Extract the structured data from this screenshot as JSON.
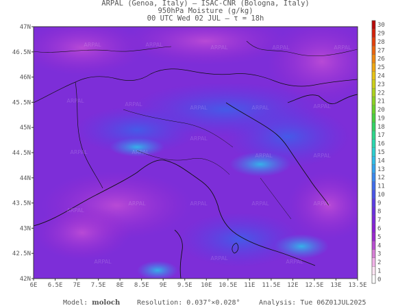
{
  "header": {
    "line1": "ARPAL (Genoa, Italy)  –  ISAC-CNR (Bologna, Italy)",
    "line2": "950hPa Moisture (g/kg)",
    "line3": "00 UTC Wed 02 JUL  –  τ = 18h"
  },
  "map": {
    "lat_labels": [
      "47N",
      "46.5N",
      "46N",
      "45.5N",
      "45N",
      "44.5N",
      "44N",
      "43.5N",
      "43N",
      "42.5N",
      "42N"
    ],
    "lon_labels": [
      "6E",
      "6.5E",
      "7E",
      "7.5E",
      "8E",
      "8.5E",
      "9E",
      "9.5E",
      "10E",
      "10.5E",
      "11E",
      "11.5E",
      "12E",
      "12.5E",
      "13E",
      "13.5E"
    ],
    "watermark": "ARPAL"
  },
  "colorbar": {
    "labels": [
      "0",
      "1",
      "2",
      "3",
      "4",
      "5",
      "6",
      "7",
      "8",
      "9",
      "10",
      "11",
      "12",
      "13",
      "14",
      "15",
      "16",
      "17",
      "18",
      "19",
      "20",
      "21",
      "22",
      "23",
      "24",
      "25",
      "26",
      "27",
      "28",
      "29",
      "30"
    ],
    "colors": [
      "#ffffff",
      "#ffe6f4",
      "#f2b3e8",
      "#d77fd6",
      "#b84dd1",
      "#9928cf",
      "#8a1ed6",
      "#7a27dc",
      "#6a2fe0",
      "#5a3be4",
      "#4a55e8",
      "#3f6dec",
      "#3a88ee",
      "#35a3ef",
      "#30bde8",
      "#2ccfd0",
      "#2ad8b0",
      "#2cd68a",
      "#32d464",
      "#48d23e",
      "#68d22a",
      "#8ad222",
      "#acd21c",
      "#ccd018",
      "#e8c414",
      "#f0a810",
      "#f0880e",
      "#ec640c",
      "#e4400a",
      "#d42008",
      "#b80808"
    ]
  },
  "footer": {
    "model_label": "Model:",
    "model_name": "moloch",
    "resolution": "Resolution: 0.037°×0.028°",
    "analysis": "Analysis: Tue 06Z01JUL2025"
  }
}
